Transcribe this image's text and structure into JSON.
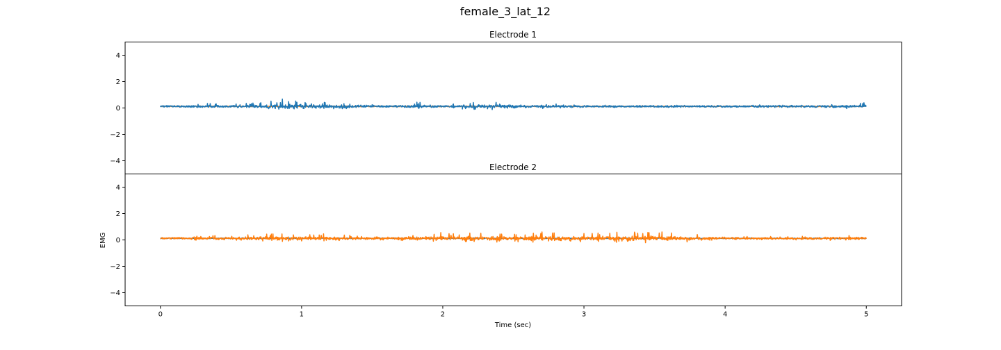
{
  "figure": {
    "suptitle": "female_3_lat_12",
    "xlabel": "Time (sec)",
    "ylabel": "EMG"
  },
  "colors": {
    "blue": "#1f77b4",
    "orange": "#ff7f0e"
  },
  "chart_data": [
    {
      "type": "line",
      "title": "Electrode 1",
      "xlabel": "",
      "ylabel": "",
      "xlim": [
        -0.25,
        5.25
      ],
      "ylim": [
        -5,
        5
      ],
      "xticks": [
        0,
        1,
        2,
        3,
        4,
        5
      ],
      "xtick_labels": [
        "0",
        "1",
        "2",
        "3",
        "4",
        "5"
      ],
      "yticks": [
        4,
        2,
        0,
        -2,
        -4
      ],
      "ytick_labels": [
        "4",
        "2",
        "0",
        "−2",
        "−4"
      ],
      "grid": false,
      "series": [
        {
          "color": "blue",
          "x_range": [
            0,
            5
          ],
          "baseline": 0.12,
          "points": [
            [
              0,
              0.1
            ],
            [
              0.1,
              0.14
            ],
            [
              0.2,
              0.1
            ],
            [
              0.24,
              0.5
            ],
            [
              0.26,
              -0.2
            ],
            [
              0.3,
              0.45
            ],
            [
              0.32,
              -0.32
            ],
            [
              0.5,
              0.22
            ],
            [
              0.84,
              0.68
            ],
            [
              1.09,
              0.6
            ],
            [
              1.5,
              0.25
            ],
            [
              1.83,
              -0.2
            ],
            [
              2.21,
              0.6
            ],
            [
              3.0,
              0.2
            ],
            [
              4.0,
              0.15
            ],
            [
              4.8,
              0.25
            ],
            [
              4.86,
              -0.15
            ],
            [
              4.98,
              0.55
            ],
            [
              5.0,
              0.1
            ]
          ]
        },
        {
          "color": "orange",
          "x_range": [
            0,
            5
          ],
          "baseline": 0.12,
          "points": [
            [
              0,
              0.12
            ],
            [
              1,
              0.13
            ],
            [
              2,
              0.12
            ],
            [
              3,
              0.13
            ],
            [
              4,
              0.12
            ],
            [
              5,
              0.12
            ]
          ]
        }
      ]
    },
    {
      "type": "line",
      "title": "Electrode 2",
      "xlabel": "Time (sec)",
      "ylabel": "EMG",
      "xlim": [
        -0.25,
        5.25
      ],
      "ylim": [
        -5,
        5
      ],
      "xticks": [
        0,
        1,
        2,
        3,
        4,
        5
      ],
      "xtick_labels": [
        "0",
        "1",
        "2",
        "3",
        "4",
        "5"
      ],
      "yticks": [
        4,
        2,
        0,
        -2,
        -4
      ],
      "ytick_labels": [
        "4",
        "2",
        "0",
        "−2",
        "−4"
      ],
      "grid": false,
      "series": [
        {
          "color": "blue",
          "x_range": [
            0,
            5
          ],
          "baseline": 0.12,
          "points": [
            [
              0,
              0.12
            ],
            [
              1,
              0.12
            ],
            [
              2,
              0.13
            ],
            [
              3,
              0.12
            ],
            [
              4,
              0.12
            ],
            [
              5,
              0.12
            ]
          ]
        },
        {
          "color": "orange",
          "x_range": [
            0,
            5
          ],
          "baseline": 0.12,
          "points": [
            [
              0,
              0.12
            ],
            [
              0.2,
              0.1
            ],
            [
              0.25,
              0.75
            ],
            [
              0.28,
              -0.3
            ],
            [
              0.33,
              0.45
            ],
            [
              0.5,
              0.3
            ],
            [
              0.78,
              0.55
            ],
            [
              1.22,
              0.5
            ],
            [
              1.5,
              0.25
            ],
            [
              1.94,
              0.6
            ],
            [
              2.31,
              0.62
            ],
            [
              3.08,
              0.6
            ],
            [
              3.63,
              0.68
            ],
            [
              4.0,
              0.2
            ],
            [
              4.96,
              0.35
            ],
            [
              5.0,
              0.12
            ]
          ]
        }
      ]
    }
  ]
}
